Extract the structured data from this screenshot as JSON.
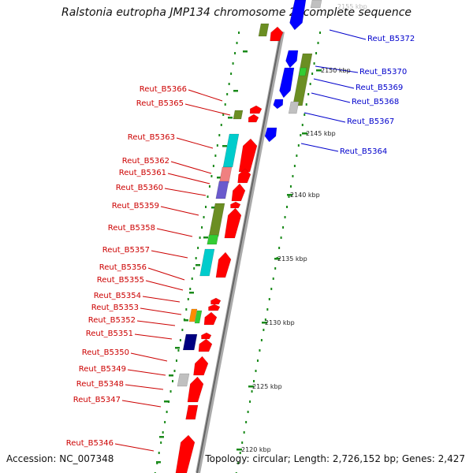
{
  "title": "Ralstonia eutropha JMP134 chromosome 2, complete sequence",
  "accession": "Accession: NC_007348",
  "summary": "Topology: circular; Length: 2,726,152 bp; Genes: 2,427",
  "kbp_ticks": [
    "2155 kbp",
    "2150 kbp",
    "2145 kbp",
    "2140 kbp",
    "2135 kbp",
    "2130 kbp",
    "2125 kbp",
    "2120 kbp"
  ],
  "reverse_genes": [
    "Reut_B5366",
    "Reut_B5365",
    "Reut_B5363",
    "Reut_B5362",
    "Reut_B5361",
    "Reut_B5360",
    "Reut_B5359",
    "Reut_B5358",
    "Reut_B5357",
    "Reut_B5356",
    "Reut_B5355",
    "Reut_B5354",
    "Reut_B5353",
    "Reut_B5352",
    "Reut_B5351",
    "Reut_B5350",
    "Reut_B5349",
    "Reut_B5348",
    "Reut_B5347",
    "Reut_B5346"
  ],
  "forward_genes": [
    "Reut_B5372",
    "Reut_B5370",
    "Reut_B5369",
    "Reut_B5368",
    "Reut_B5367",
    "Reut_B5364"
  ],
  "colors": {
    "reverse_label": "#cc0000",
    "forward_label": "#0000cc",
    "backbone": "#888888",
    "tick": "#1a8a1a",
    "gene_red": "#ff0000",
    "gene_blue": "#0000ff",
    "gene_olive": "#6b8e23",
    "gene_cyan": "#00cccc",
    "gene_pink": "#f08080",
    "gene_slate": "#6a5acd",
    "gene_green": "#33cc33",
    "gene_orange": "#ff8c00",
    "gene_navy": "#000080",
    "gene_gray": "#c0c0c0"
  }
}
